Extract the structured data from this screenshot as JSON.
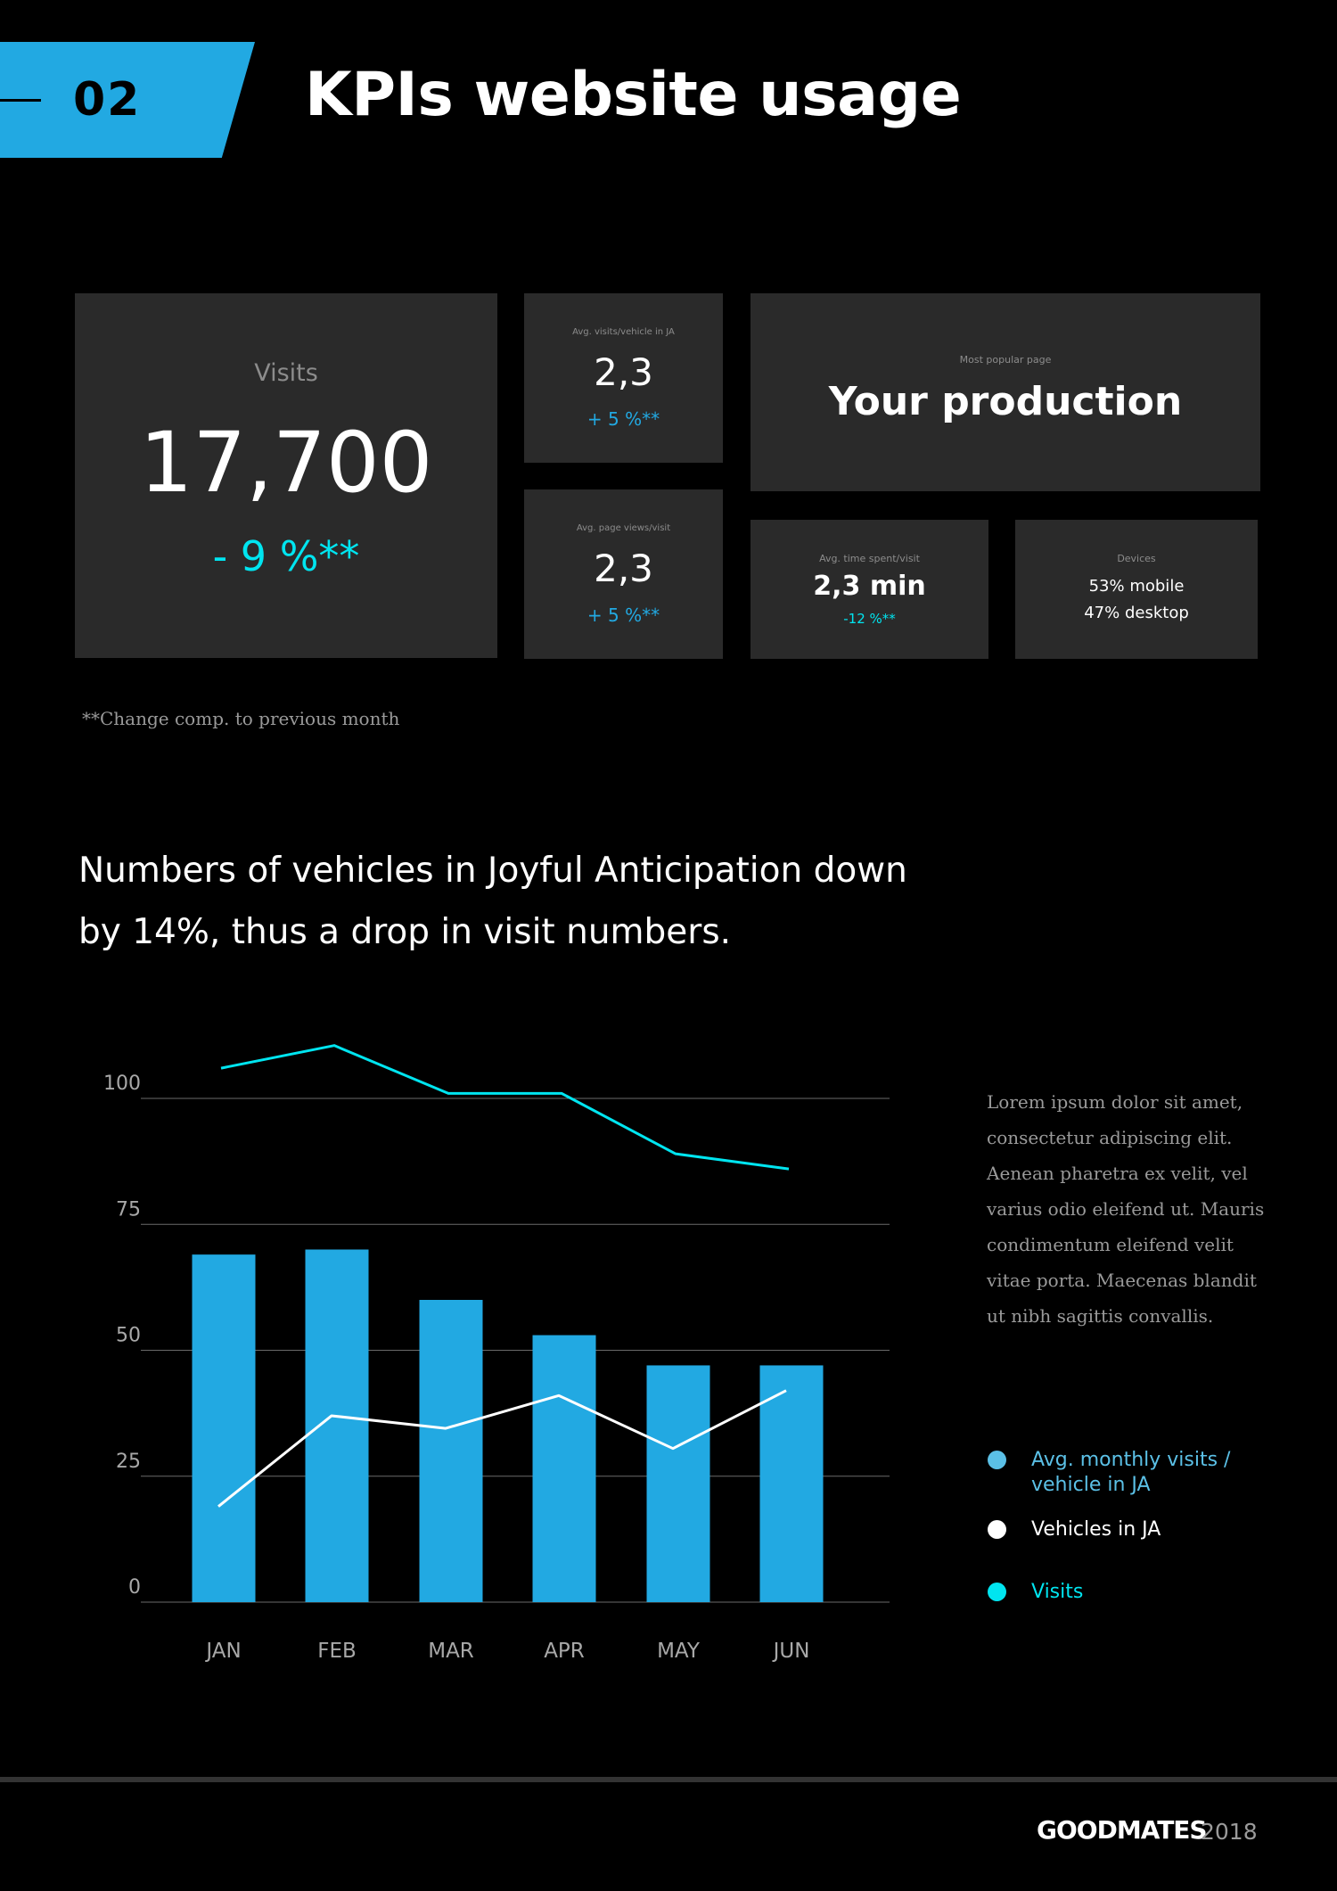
{
  "header": {
    "number": "02",
    "title": "KPIs website usage"
  },
  "kpis": {
    "visits": {
      "label": "Visits",
      "value": "17,700",
      "change": "- 9 %**"
    },
    "avg_visits_vehicle": {
      "label": "Avg. visits/vehicle in JA",
      "value": "2,3",
      "change": "+ 5 %**"
    },
    "avg_page_views": {
      "label": "Avg. page views/visit",
      "value": "2,3",
      "change": "+ 5 %**"
    },
    "popular_page": {
      "label": "Most popular page",
      "value": "Your production"
    },
    "avg_time": {
      "label": "Avg. time spent/visit",
      "value": "2,3 min",
      "change": "-12 %**"
    },
    "devices": {
      "label": "Devices",
      "mobile": "53% mobile",
      "desktop": "47% desktop"
    }
  },
  "footnote": "**Change comp. to previous month",
  "headline": "Numbers of vehicles in Joyful Anticipation down by 14%, thus a drop in visit numbers.",
  "description": "Lorem ipsum dolor sit amet, consectetur adipiscing elit. Aenean pharetra ex velit, vel varius odio eleifend ut. Mauris condimentum eleifend velit vitae porta. Maecenas blandit ut nibh sagittis convallis.",
  "legend": [
    {
      "label": "Avg. monthly visits / vehicle in JA",
      "color": "#5bc0e6",
      "text_color": "#5bc0e6"
    },
    {
      "label": "Vehicles in JA",
      "color": "#ffffff",
      "text_color": "#ffffff"
    },
    {
      "label": "Visits",
      "color": "#00e5f0",
      "text_color": "#00e5f0"
    }
  ],
  "chart_data": {
    "type": "bar",
    "categories": [
      "JAN",
      "FEB",
      "MAR",
      "APR",
      "MAY",
      "JUN"
    ],
    "ylim": [
      0,
      100
    ],
    "yticks": [
      0,
      25,
      50,
      75,
      100
    ],
    "grid": true,
    "series": [
      {
        "name": "Avg. monthly visits / vehicle in JA",
        "type": "bar",
        "color": "#22a9e2",
        "values": [
          69,
          70,
          60,
          53,
          47,
          47
        ]
      },
      {
        "name": "Vehicles in JA",
        "type": "line",
        "color": "#ffffff",
        "values": [
          19,
          37,
          34.5,
          41,
          30.5,
          42
        ]
      },
      {
        "name": "Visits",
        "type": "line",
        "color": "#00e5f0",
        "values": [
          106,
          110.5,
          101,
          101,
          89,
          86
        ]
      }
    ]
  },
  "footer": {
    "brand": "GOODMATES",
    "year": "2018"
  }
}
